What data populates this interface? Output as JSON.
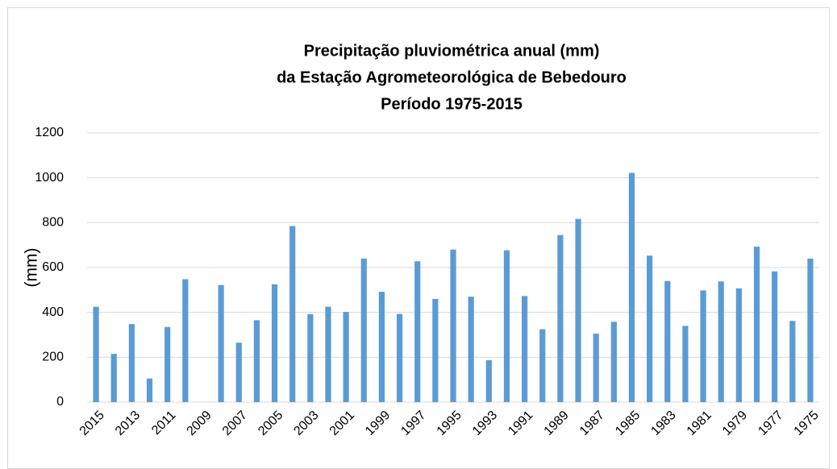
{
  "chart_data": {
    "type": "bar",
    "title": [
      "Precipitação pluviométrica anual (mm)",
      "da Estação Agrometeorológica de Bebedouro",
      "Período 1975-2015"
    ],
    "y_label": "(mm)",
    "categories": [
      "2015",
      null,
      "2013",
      null,
      "2011",
      null,
      "2009",
      null,
      "2007",
      null,
      "2005",
      null,
      "2003",
      null,
      "2001",
      null,
      "1999",
      null,
      "1997",
      null,
      "1995",
      null,
      "1993",
      null,
      "1991",
      null,
      "1989",
      null,
      "1987",
      null,
      "1985",
      null,
      "1983",
      null,
      "1981",
      null,
      "1979",
      null,
      "1977",
      null,
      "1975"
    ],
    "values": [
      425,
      215,
      348,
      105,
      335,
      548,
      null,
      522,
      265,
      365,
      525,
      785,
      392,
      425,
      402,
      640,
      492,
      393,
      628,
      460,
      680,
      470,
      187,
      677,
      473,
      325,
      745,
      817,
      305,
      358,
      1022,
      653,
      540,
      340,
      498,
      538,
      507,
      693,
      583,
      362,
      640
    ],
    "color": "#5b9bd5",
    "ylim": [
      0,
      1200
    ],
    "yticks": [
      0,
      200,
      400,
      600,
      800,
      1000,
      1200
    ],
    "grid": true
  }
}
